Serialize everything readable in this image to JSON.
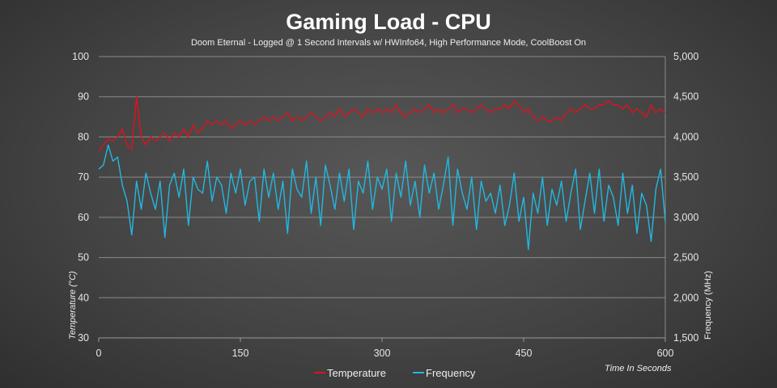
{
  "chart_data": {
    "type": "line",
    "title": "Gaming Load - CPU",
    "subtitle": "Doom Eternal - Logged @ 1 Second Intervals w/ HWInfo64, High Performance Mode, CoolBoost On",
    "xlabel": "Time In Seconds",
    "ylabel_left": "Temperature (°C)",
    "ylabel_right": "Frequency  (MHz)",
    "xlim": [
      0,
      600
    ],
    "xticks": [
      "0",
      "150",
      "300",
      "450",
      "600"
    ],
    "ylim_left": [
      30,
      100
    ],
    "yticks_left": [
      "30",
      "40",
      "50",
      "60",
      "70",
      "80",
      "90",
      "100"
    ],
    "ylim_right": [
      1500,
      5000
    ],
    "yticks_right": [
      "1,500",
      "2,000",
      "2,500",
      "3,000",
      "3,500",
      "4,000",
      "4,500",
      "5,000"
    ],
    "grid": true,
    "legend_position": "bottom",
    "x_step": 5,
    "series": [
      {
        "name": "Temperature",
        "axis": "left",
        "color": "#e3101c",
        "values": [
          76.5,
          78,
          79.5,
          79,
          80,
          82,
          78,
          77,
          90,
          80,
          78,
          80,
          79,
          80,
          81,
          79,
          81,
          80,
          82,
          80,
          83,
          81,
          82,
          84,
          83,
          84,
          83,
          84,
          82,
          83,
          84,
          83,
          84,
          83,
          84,
          85,
          84,
          85,
          84,
          85,
          86,
          84,
          85,
          84,
          85,
          86,
          85,
          84,
          85,
          86,
          85,
          87,
          85,
          86,
          87,
          86,
          85,
          87,
          86,
          87,
          86,
          87,
          86,
          88,
          86,
          85,
          86,
          87,
          86,
          87,
          88,
          86,
          87,
          86,
          87,
          88,
          86,
          87,
          87,
          86,
          87,
          88,
          87,
          86,
          87,
          87,
          88,
          87,
          89,
          88,
          86,
          87,
          85,
          84,
          85,
          84,
          84,
          85,
          84,
          86,
          87,
          86,
          87,
          88,
          87,
          87,
          88,
          88,
          89,
          88,
          88,
          87,
          88,
          86,
          87,
          86,
          85,
          88,
          86,
          87,
          86
        ]
      },
      {
        "name": "Frequency",
        "axis": "right",
        "color": "#22b8e0",
        "values": [
          3600,
          3650,
          3900,
          3700,
          3750,
          3400,
          3200,
          2780,
          3450,
          3100,
          3550,
          3300,
          3100,
          3450,
          2750,
          3400,
          3550,
          3250,
          3600,
          2900,
          3500,
          3350,
          3300,
          3700,
          3200,
          3500,
          3400,
          3050,
          3550,
          3300,
          3600,
          3150,
          3450,
          3500,
          2950,
          3600,
          3250,
          3550,
          3100,
          3450,
          2800,
          3600,
          3350,
          3250,
          3700,
          3050,
          3500,
          2900,
          3650,
          3400,
          3100,
          3550,
          3200,
          3600,
          2850,
          3450,
          3300,
          3700,
          3100,
          3500,
          3350,
          3600,
          2950,
          3550,
          3250,
          3700,
          3150,
          3450,
          3000,
          3650,
          3300,
          3550,
          3100,
          3400,
          3750,
          2900,
          3600,
          3300,
          3100,
          3500,
          2850,
          3450,
          3200,
          3300,
          3050,
          3400,
          2900,
          3150,
          3550,
          2950,
          3250,
          2600,
          3300,
          3050,
          3500,
          2900,
          3350,
          3150,
          3450,
          2950,
          3300,
          3600,
          2850,
          3200,
          3550,
          3050,
          3600,
          2950,
          3400,
          3250,
          2900,
          3550,
          3050,
          3400,
          2800,
          3300,
          3150,
          2700,
          3350,
          3600,
          2950
        ]
      }
    ]
  }
}
